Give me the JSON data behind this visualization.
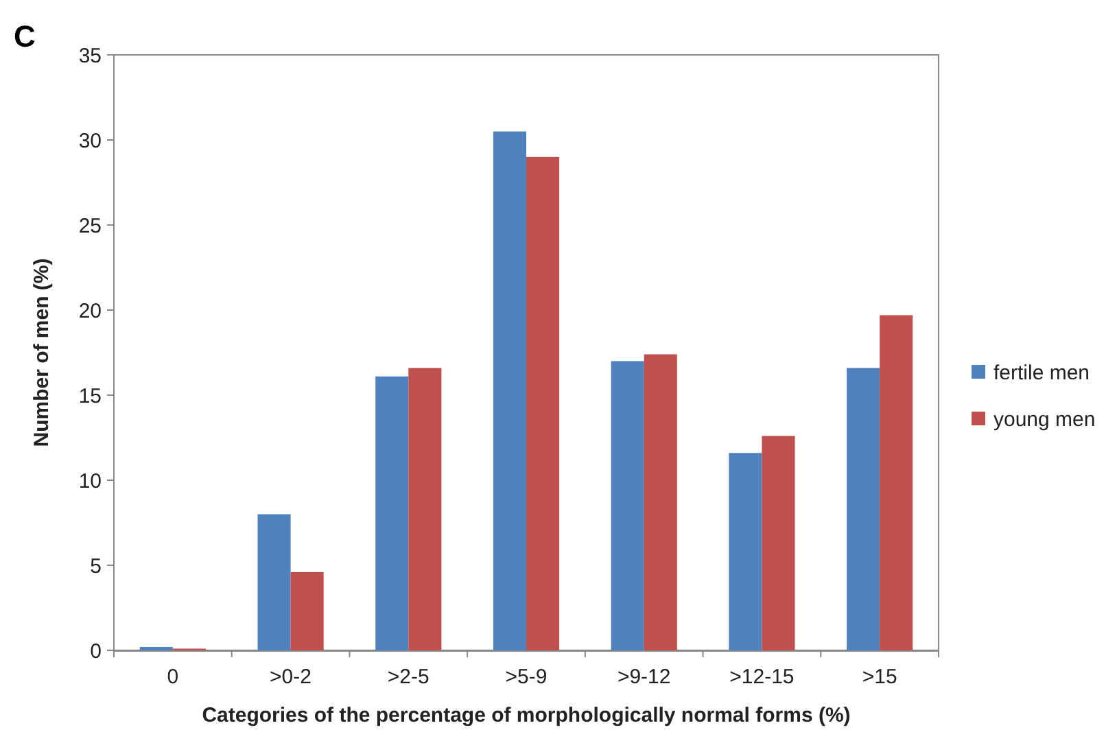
{
  "chart_data": {
    "type": "bar",
    "annotations": [
      "C"
    ],
    "xlabel": "Categories of the percentage of morphologically normal forms (%)",
    "ylabel": "Number of men (%)",
    "categories": [
      "0",
      ">0-2",
      ">2-5",
      ">5-9",
      ">9-12",
      ">12-15",
      ">15"
    ],
    "series": [
      {
        "name": "fertile men",
        "color": "#4f81bd",
        "values": [
          0.2,
          8.0,
          16.1,
          30.5,
          17.0,
          11.6,
          16.6
        ]
      },
      {
        "name": "young men",
        "color": "#c0504d",
        "values": [
          0.1,
          4.6,
          16.6,
          29.0,
          17.4,
          12.6,
          19.7
        ]
      }
    ],
    "ylim": [
      0,
      35
    ],
    "yticks": [
      0,
      5,
      10,
      15,
      20,
      25,
      30,
      35
    ],
    "grid": false,
    "legend": "right"
  }
}
